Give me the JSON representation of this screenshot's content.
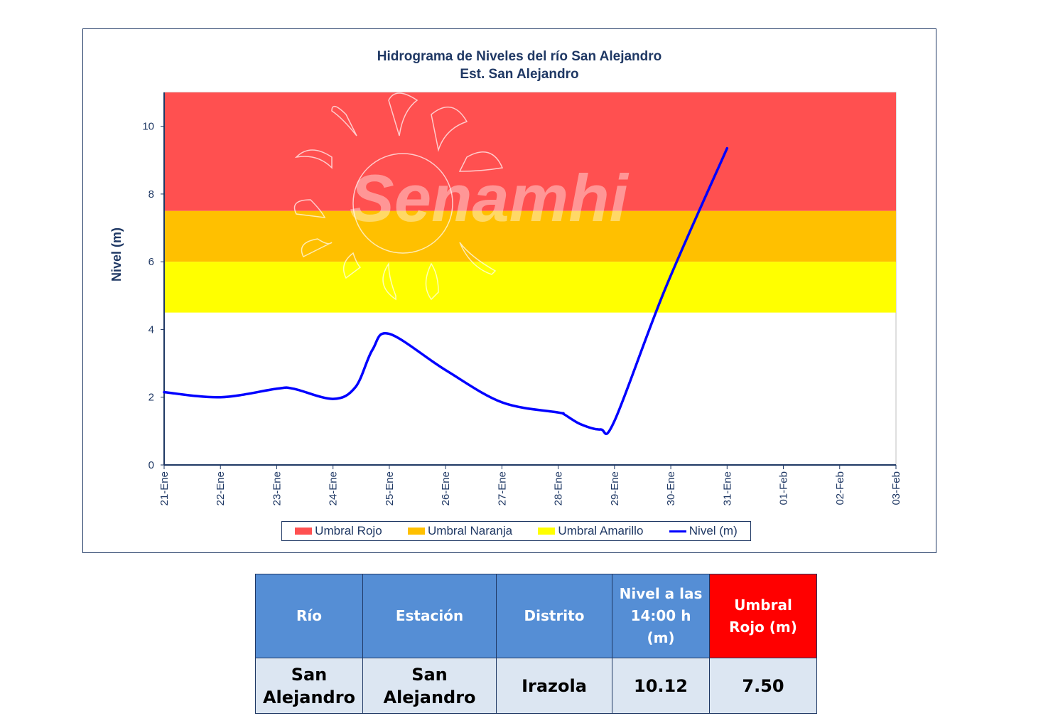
{
  "chart": {
    "title_line1": "Hidrograma  de Niveles  del río San Alejandro",
    "title_line2": "Est. San Alejandro",
    "watermark": "Senamhi"
  },
  "chart_data": {
    "type": "line",
    "title": "Hidrograma  de Niveles  del río San Alejandro / Est. San Alejandro",
    "xlabel": "",
    "ylabel": "Nivel (m)",
    "ylim": [
      0,
      11
    ],
    "yticks": [
      0,
      2,
      4,
      6,
      8,
      10
    ],
    "categories": [
      "21-Ene",
      "22-Ene",
      "23-Ene",
      "24-Ene",
      "25-Ene",
      "26-Ene",
      "27-Ene",
      "28-Ene",
      "29-Ene",
      "30-Ene",
      "31-Ene",
      "01-Feb",
      "02-Feb",
      "03-Feb"
    ],
    "thresholds": [
      {
        "name": "Umbral Rojo",
        "from": 7.5,
        "to": 11,
        "color": "#ff5050"
      },
      {
        "name": "Umbral Naranja",
        "from": 6.0,
        "to": 7.5,
        "color": "#ffc000"
      },
      {
        "name": "Umbral Amarillo",
        "from": 4.5,
        "to": 6.0,
        "color": "#ffff00"
      }
    ],
    "series": [
      {
        "name": "Nivel (m)",
        "color": "#0000ff",
        "x": [
          0,
          1,
          2,
          2.3,
          3,
          3.4,
          3.7,
          4,
          5,
          6,
          7,
          7.1,
          7.4,
          7.75,
          8,
          8.9,
          10
        ],
        "values": [
          2.15,
          2.0,
          2.25,
          2.25,
          1.95,
          2.3,
          3.4,
          3.87,
          2.8,
          1.85,
          1.55,
          1.5,
          1.2,
          1.05,
          1.3,
          5.2,
          9.35
        ]
      }
    ],
    "grid": false,
    "legend": "bottom"
  },
  "legend": {
    "items": [
      {
        "label": "Umbral Rojo",
        "color": "#ff5050"
      },
      {
        "label": "Umbral Naranja",
        "color": "#ffc000"
      },
      {
        "label": "Umbral Amarillo",
        "color": "#ffff00"
      },
      {
        "label": "Nivel (m)",
        "color": "#0000ff"
      }
    ]
  },
  "table": {
    "headers": {
      "rio": "Río",
      "estacion": "Estación",
      "distrito": "Distrito",
      "nivel": "Nivel a las 14:00 h (m)",
      "umbral": "Umbral Rojo (m)"
    },
    "row": {
      "rio": "San Alejandro",
      "estacion": "San Alejandro",
      "distrito": "Irazola",
      "nivel": "10.12",
      "umbral": "7.50"
    }
  }
}
